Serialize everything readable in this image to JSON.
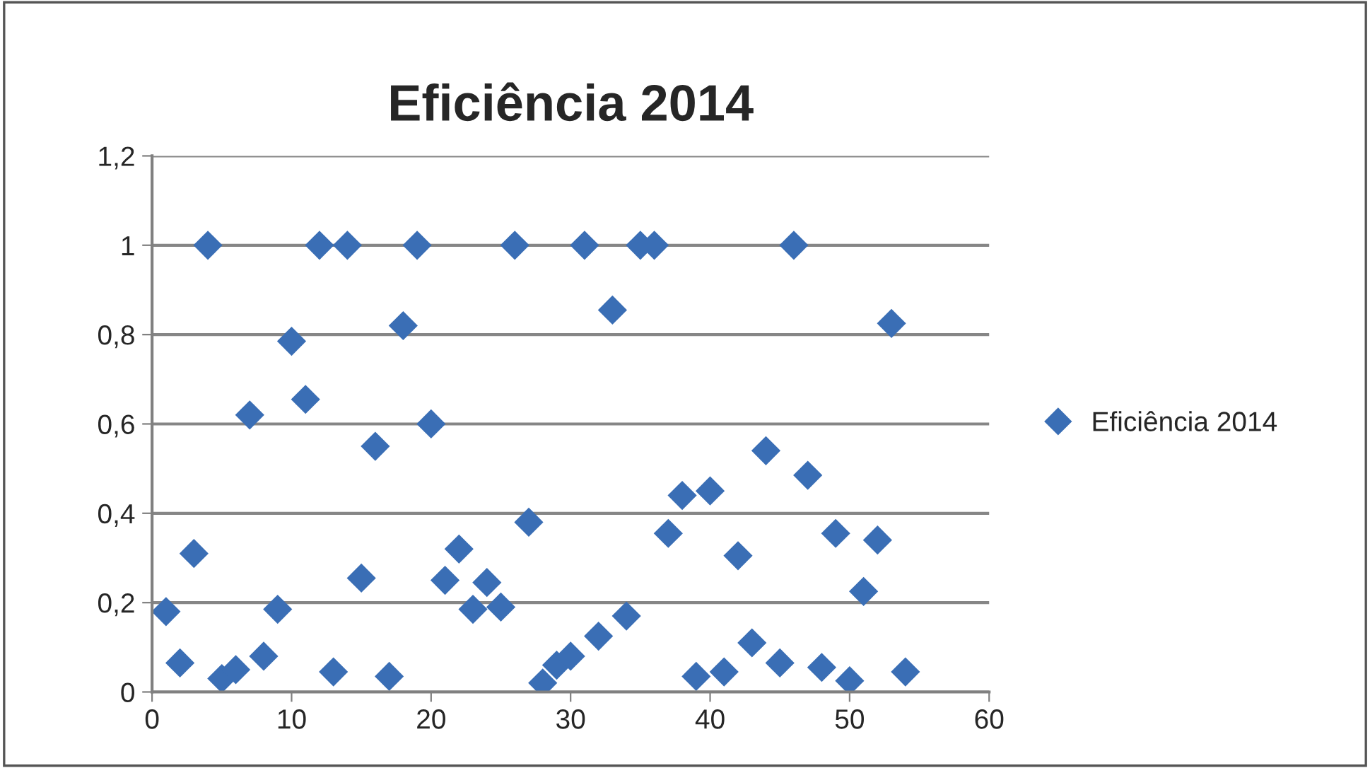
{
  "chart_data": {
    "type": "scatter",
    "title": "Eficiência 2014",
    "x": [
      1,
      2,
      3,
      4,
      5,
      6,
      7,
      8,
      9,
      10,
      11,
      12,
      13,
      14,
      15,
      16,
      17,
      18,
      19,
      20,
      21,
      22,
      23,
      24,
      25,
      26,
      27,
      28,
      29,
      30,
      31,
      32,
      33,
      34,
      35,
      36,
      37,
      38,
      39,
      40,
      41,
      42,
      43,
      44,
      45,
      46,
      47,
      48,
      49,
      50,
      51,
      52,
      53,
      54
    ],
    "series": [
      {
        "name": "Eficiência 2014",
        "color": "#3a6eb5",
        "values": [
          0.18,
          0.065,
          0.31,
          1,
          0.03,
          0.05,
          0.62,
          0.08,
          0.185,
          0.785,
          0.655,
          1,
          0.045,
          1,
          0.255,
          0.55,
          0.035,
          0.82,
          1,
          0.6,
          0.25,
          0.32,
          0.185,
          0.245,
          0.19,
          1,
          0.38,
          0.02,
          0.06,
          0.08,
          1,
          0.125,
          0.855,
          0.17,
          1,
          1,
          0.355,
          0.44,
          0.035,
          0.45,
          0.045,
          0.305,
          0.11,
          0.54,
          0.065,
          1,
          0.485,
          0.055,
          0.355,
          0.025,
          0.225,
          0.34,
          0.825,
          0.045
        ]
      }
    ],
    "xlim": [
      0,
      60
    ],
    "xticks": [
      0,
      10,
      20,
      30,
      40,
      50,
      60
    ],
    "ylim": [
      0,
      1.2
    ],
    "yticks": [
      {
        "value": 0,
        "label": "0"
      },
      {
        "value": 0.2,
        "label": "0,2"
      },
      {
        "value": 0.4,
        "label": "0,4"
      },
      {
        "value": 0.6,
        "label": "0,6"
      },
      {
        "value": 0.8,
        "label": "0,8"
      },
      {
        "value": 1,
        "label": "1"
      },
      {
        "value": 1.2,
        "label": "1,2"
      }
    ],
    "grid": "y",
    "legend": "right",
    "marker": "diamond"
  }
}
